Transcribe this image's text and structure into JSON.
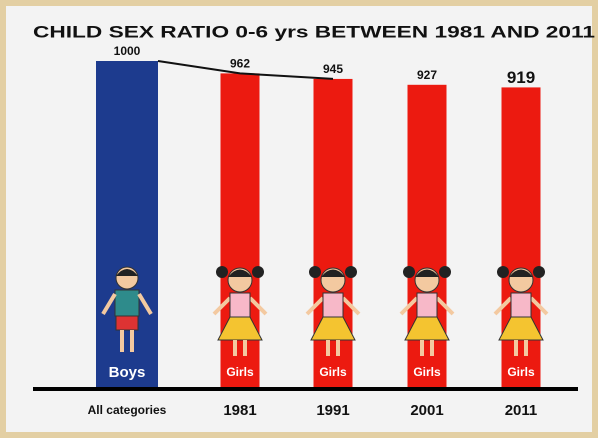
{
  "chart_data": {
    "type": "bar",
    "title": "CHILD SEX RATIO 0-6 yrs BETWEEN 1981 AND 2011",
    "categories": [
      "All categories",
      "1981",
      "1991",
      "2001",
      "2011"
    ],
    "values": [
      1000,
      962,
      945,
      927,
      919
    ],
    "bar_labels": [
      "Boys",
      "Girls",
      "Girls",
      "Girls",
      "Girls"
    ],
    "colors": [
      "#1d3b8e",
      "#ec1a10",
      "#ec1a10",
      "#ec1a10",
      "#ec1a10"
    ]
  }
}
